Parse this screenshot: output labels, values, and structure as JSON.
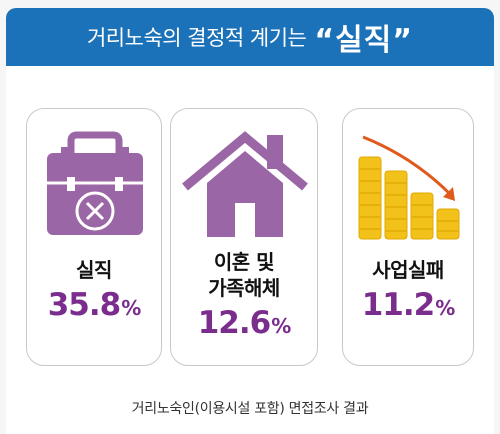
{
  "banner": {
    "text": "거리노숙의 결정적 계기는",
    "highlight": "“실직”"
  },
  "chart_data": {
    "type": "table",
    "title": "거리노숙의 결정적 계기는 “실직”",
    "categories": [
      "실직",
      "이혼 및 가족해체",
      "사업실패"
    ],
    "values": [
      35.8,
      12.6,
      11.2
    ],
    "unit": "%",
    "note": "거리노숙인(이용시설 포함) 면접조사 결과"
  },
  "cards": [
    {
      "label": "실직",
      "value": "35.8",
      "unit": "%",
      "icon": "briefcase-x-icon"
    },
    {
      "label_line1": "이혼 및",
      "label_line2": "가족해체",
      "value": "12.6",
      "unit": "%",
      "icon": "house-icon"
    },
    {
      "label": "사업실패",
      "value": "11.2",
      "unit": "%",
      "icon": "falling-coins-icon"
    }
  ],
  "footer": "거리노숙인(이용시설 포함) 면접조사 결과",
  "colors": {
    "banner": "#1c72b8",
    "accent": "#7b2d8e",
    "icon_purple": "#9b66a6",
    "coin": "#f2c21b",
    "arrow": "#e05a1c"
  }
}
